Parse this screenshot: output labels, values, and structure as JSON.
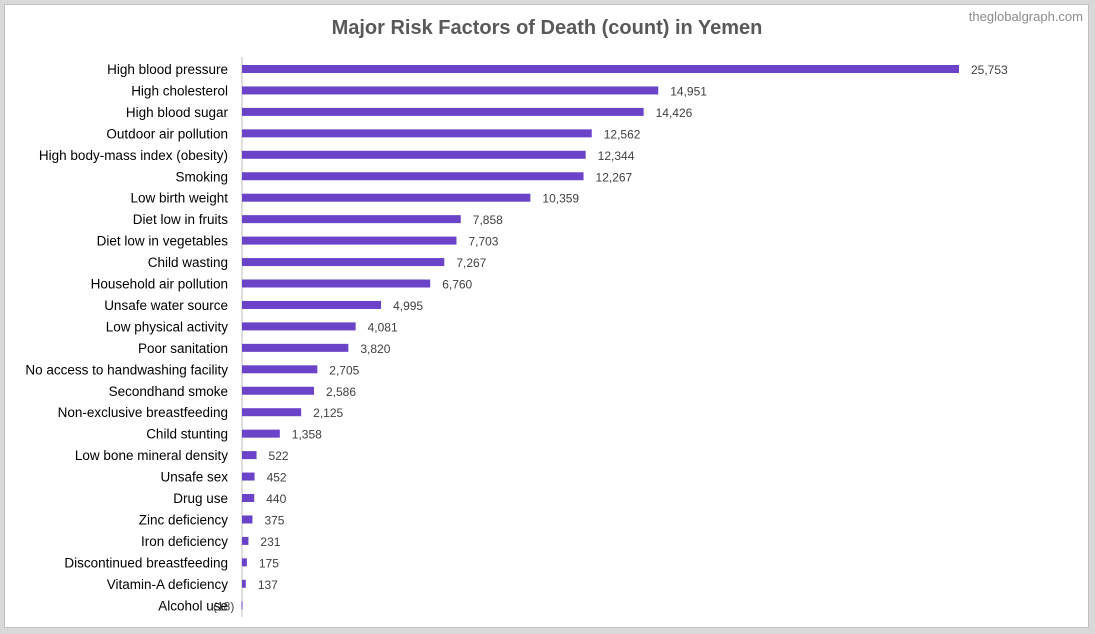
{
  "watermark": "theglobalgraph.com",
  "colors": {
    "bar": "#6a43c9",
    "title": "#595959",
    "text": "#000000",
    "value": "#404040",
    "watermark": "#8c8c8c",
    "axis": "#bfbfbf"
  },
  "chart_data": {
    "type": "bar",
    "orientation": "horizontal",
    "title": "Major Risk Factors of Death (count) in Yemen",
    "xlabel": "",
    "ylabel": "",
    "grid": false,
    "legend": "none",
    "xlim": [
      0,
      25753
    ],
    "categories": [
      "High blood pressure",
      "High cholesterol",
      "High blood sugar",
      "Outdoor air pollution",
      "High body-mass index (obesity)",
      "Smoking",
      "Low birth weight",
      "Diet low in fruits",
      "Diet low in vegetables",
      "Child wasting",
      "Household air pollution",
      "Unsafe water source",
      "Low physical activity",
      "Poor sanitation",
      "No access to handwashing facility",
      "Secondhand smoke",
      "Non-exclusive breastfeeding",
      "Child stunting",
      "Low bone mineral density",
      "Unsafe sex",
      "Drug use",
      "Zinc deficiency",
      "Iron deficiency",
      "Discontinued breastfeeding",
      "Vitamin-A deficiency",
      "Alcohol use"
    ],
    "values": [
      25753,
      14951,
      14426,
      12562,
      12344,
      12267,
      10359,
      7858,
      7703,
      7267,
      6760,
      4995,
      4081,
      3820,
      2705,
      2586,
      2125,
      1358,
      522,
      452,
      440,
      375,
      231,
      175,
      137,
      -18
    ],
    "value_labels": [
      "25,753",
      "14,951",
      "14,426",
      "12,562",
      "12,344",
      "12,267",
      "10,359",
      "7,858",
      "7,703",
      "7,267",
      "6,760",
      "4,995",
      "4,081",
      "3,820",
      "2,705",
      "2,586",
      "2,125",
      "1,358",
      "522",
      "452",
      "440",
      "375",
      "231",
      "175",
      "137",
      "(18)"
    ]
  }
}
